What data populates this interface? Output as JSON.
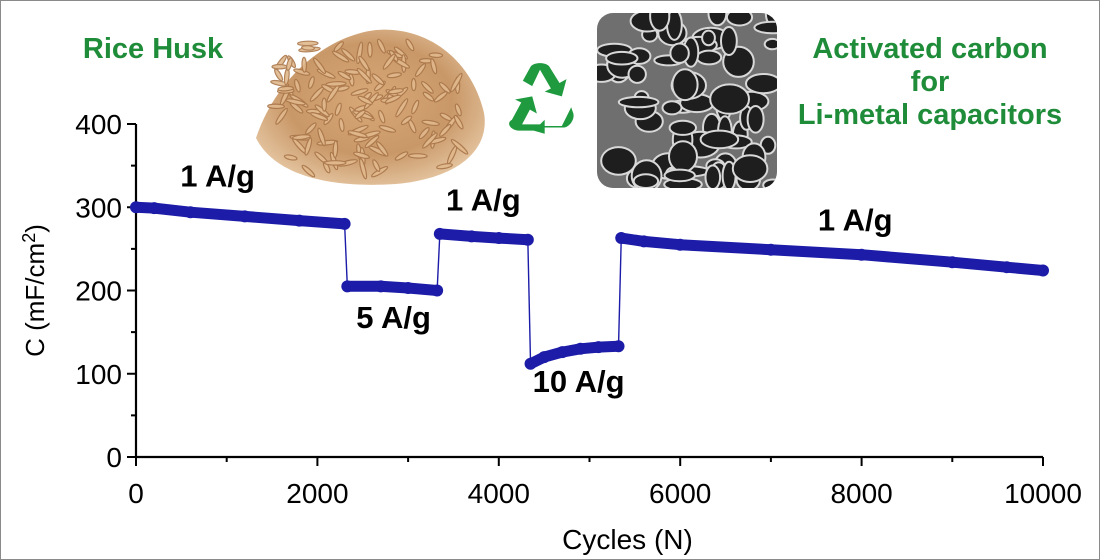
{
  "headlines": {
    "left": "Rice Husk",
    "right_line1": "Activated carbon",
    "right_line2": "for",
    "right_line3": "Li-metal capacitors"
  },
  "decorations": {
    "left_image": "rice-husk-photo",
    "center_icon": "recycle-icon",
    "right_image": "sem-porous-carbon-micrograph",
    "headline_color": "#1f8c3a",
    "series_color": "#1c1ca8"
  },
  "chart_data": {
    "type": "scatter",
    "title": "",
    "xlabel": "Cycles (N)",
    "ylabel_main": "C (mF/cm",
    "ylabel_sup": "2",
    "ylabel_close": ")",
    "xlim": [
      0,
      10000
    ],
    "ylim": [
      0,
      400
    ],
    "xticks": [
      0,
      2000,
      4000,
      6000,
      8000,
      10000
    ],
    "yticks": [
      0,
      100,
      200,
      300,
      400
    ],
    "grid": false,
    "series": [
      {
        "values": [
          {
            "x": 0,
            "y": 300
          },
          {
            "x": 200,
            "y": 299
          },
          {
            "x": 600,
            "y": 294
          },
          {
            "x": 1200,
            "y": 289
          },
          {
            "x": 1800,
            "y": 284
          },
          {
            "x": 2300,
            "y": 280
          }
        ]
      },
      {
        "values": [
          {
            "x": 2330,
            "y": 205
          },
          {
            "x": 2700,
            "y": 205
          },
          {
            "x": 3000,
            "y": 203
          },
          {
            "x": 3320,
            "y": 200
          }
        ]
      },
      {
        "values": [
          {
            "x": 3350,
            "y": 268
          },
          {
            "x": 3700,
            "y": 265
          },
          {
            "x": 4000,
            "y": 263
          },
          {
            "x": 4320,
            "y": 261
          }
        ]
      },
      {
        "values": [
          {
            "x": 4350,
            "y": 112
          },
          {
            "x": 4500,
            "y": 120
          },
          {
            "x": 4700,
            "y": 126
          },
          {
            "x": 4900,
            "y": 130
          },
          {
            "x": 5100,
            "y": 132
          },
          {
            "x": 5320,
            "y": 133
          }
        ]
      },
      {
        "values": [
          {
            "x": 5350,
            "y": 263
          },
          {
            "x": 5600,
            "y": 259
          },
          {
            "x": 6000,
            "y": 255
          },
          {
            "x": 7000,
            "y": 249
          },
          {
            "x": 8000,
            "y": 243
          },
          {
            "x": 9000,
            "y": 234
          },
          {
            "x": 9600,
            "y": 228
          },
          {
            "x": 10000,
            "y": 224
          }
        ]
      }
    ],
    "annotations": [
      {
        "text": "1 A/g",
        "x": 900,
        "y": 325
      },
      {
        "text": "5 A/g",
        "x": 2840,
        "y": 155
      },
      {
        "text": "1 A/g",
        "x": 3830,
        "y": 296
      },
      {
        "text": "10 A/g",
        "x": 4880,
        "y": 78
      },
      {
        "text": "1 A/g",
        "x": 7930,
        "y": 272
      }
    ]
  }
}
